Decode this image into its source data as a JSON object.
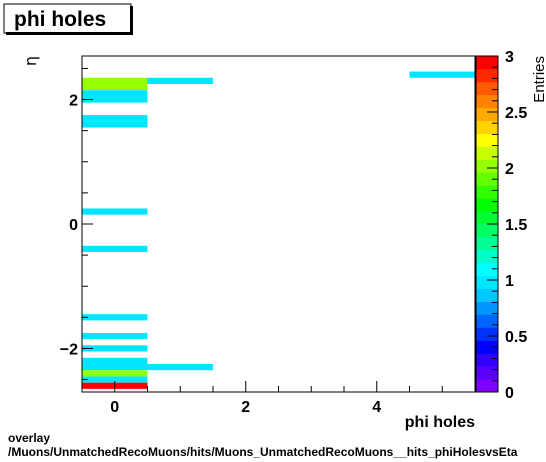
{
  "chart_data": {
    "type": "heatmap",
    "title": "phi holes",
    "xlabel": "phi holes",
    "ylabel": "η",
    "zlabel": "Entries",
    "x_range": [
      -0.5,
      5.5
    ],
    "y_range": [
      -2.7,
      2.7
    ],
    "z_range": [
      0,
      3
    ],
    "x_ticks": [
      0,
      2,
      4
    ],
    "y_ticks": [
      -2,
      0,
      2
    ],
    "z_ticks": [
      "0",
      "0.5",
      "1",
      "1.5",
      "2",
      "2.5",
      "3"
    ],
    "x_tick_labels": [
      "0",
      "2",
      "4"
    ],
    "y_tick_labels": [
      "−2",
      "0",
      "2"
    ],
    "cells": [
      {
        "x": [
          -0.5,
          0.5
        ],
        "y": [
          2.25,
          2.35
        ],
        "z": 2
      },
      {
        "x": [
          -0.5,
          0.5
        ],
        "y": [
          2.15,
          2.25
        ],
        "z": 2
      },
      {
        "x": [
          -0.5,
          0.5
        ],
        "y": [
          2.05,
          2.15
        ],
        "z": 1
      },
      {
        "x": [
          -0.5,
          0.5
        ],
        "y": [
          1.95,
          2.05
        ],
        "z": 1
      },
      {
        "x": [
          -0.5,
          0.5
        ],
        "y": [
          1.65,
          1.75
        ],
        "z": 1
      },
      {
        "x": [
          -0.5,
          0.5
        ],
        "y": [
          1.55,
          1.65
        ],
        "z": 1
      },
      {
        "x": [
          -0.5,
          0.5
        ],
        "y": [
          0.15,
          0.25
        ],
        "z": 1
      },
      {
        "x": [
          -0.5,
          0.5
        ],
        "y": [
          -0.45,
          -0.35
        ],
        "z": 1
      },
      {
        "x": [
          -0.5,
          0.5
        ],
        "y": [
          -1.55,
          -1.45
        ],
        "z": 1
      },
      {
        "x": [
          -0.5,
          0.5
        ],
        "y": [
          -1.85,
          -1.75
        ],
        "z": 1
      },
      {
        "x": [
          -0.5,
          0.5
        ],
        "y": [
          -2.05,
          -1.95
        ],
        "z": 1
      },
      {
        "x": [
          -0.5,
          0.5
        ],
        "y": [
          -2.25,
          -2.15
        ],
        "z": 1
      },
      {
        "x": [
          -0.5,
          0.5
        ],
        "y": [
          -2.35,
          -2.25
        ],
        "z": 1
      },
      {
        "x": [
          -0.5,
          0.5
        ],
        "y": [
          -2.45,
          -2.35
        ],
        "z": 2
      },
      {
        "x": [
          -0.5,
          0.5
        ],
        "y": [
          -2.55,
          -2.45
        ],
        "z": 1
      },
      {
        "x": [
          -0.5,
          0.5
        ],
        "y": [
          -2.65,
          -2.55
        ],
        "z": 3
      },
      {
        "x": [
          0.5,
          1.5
        ],
        "y": [
          2.25,
          2.35
        ],
        "z": 1
      },
      {
        "x": [
          0.5,
          1.5
        ],
        "y": [
          -2.35,
          -2.25
        ],
        "z": 1
      },
      {
        "x": [
          4.5,
          5.5
        ],
        "y": [
          2.35,
          2.45
        ],
        "z": 1
      }
    ]
  },
  "footer": {
    "line1": "overlay",
    "line2": "/Muons/UnmatchedRecoMuons/hits/Muons_UnmatchedRecoMuons__hits_phiHolesvsEta"
  }
}
